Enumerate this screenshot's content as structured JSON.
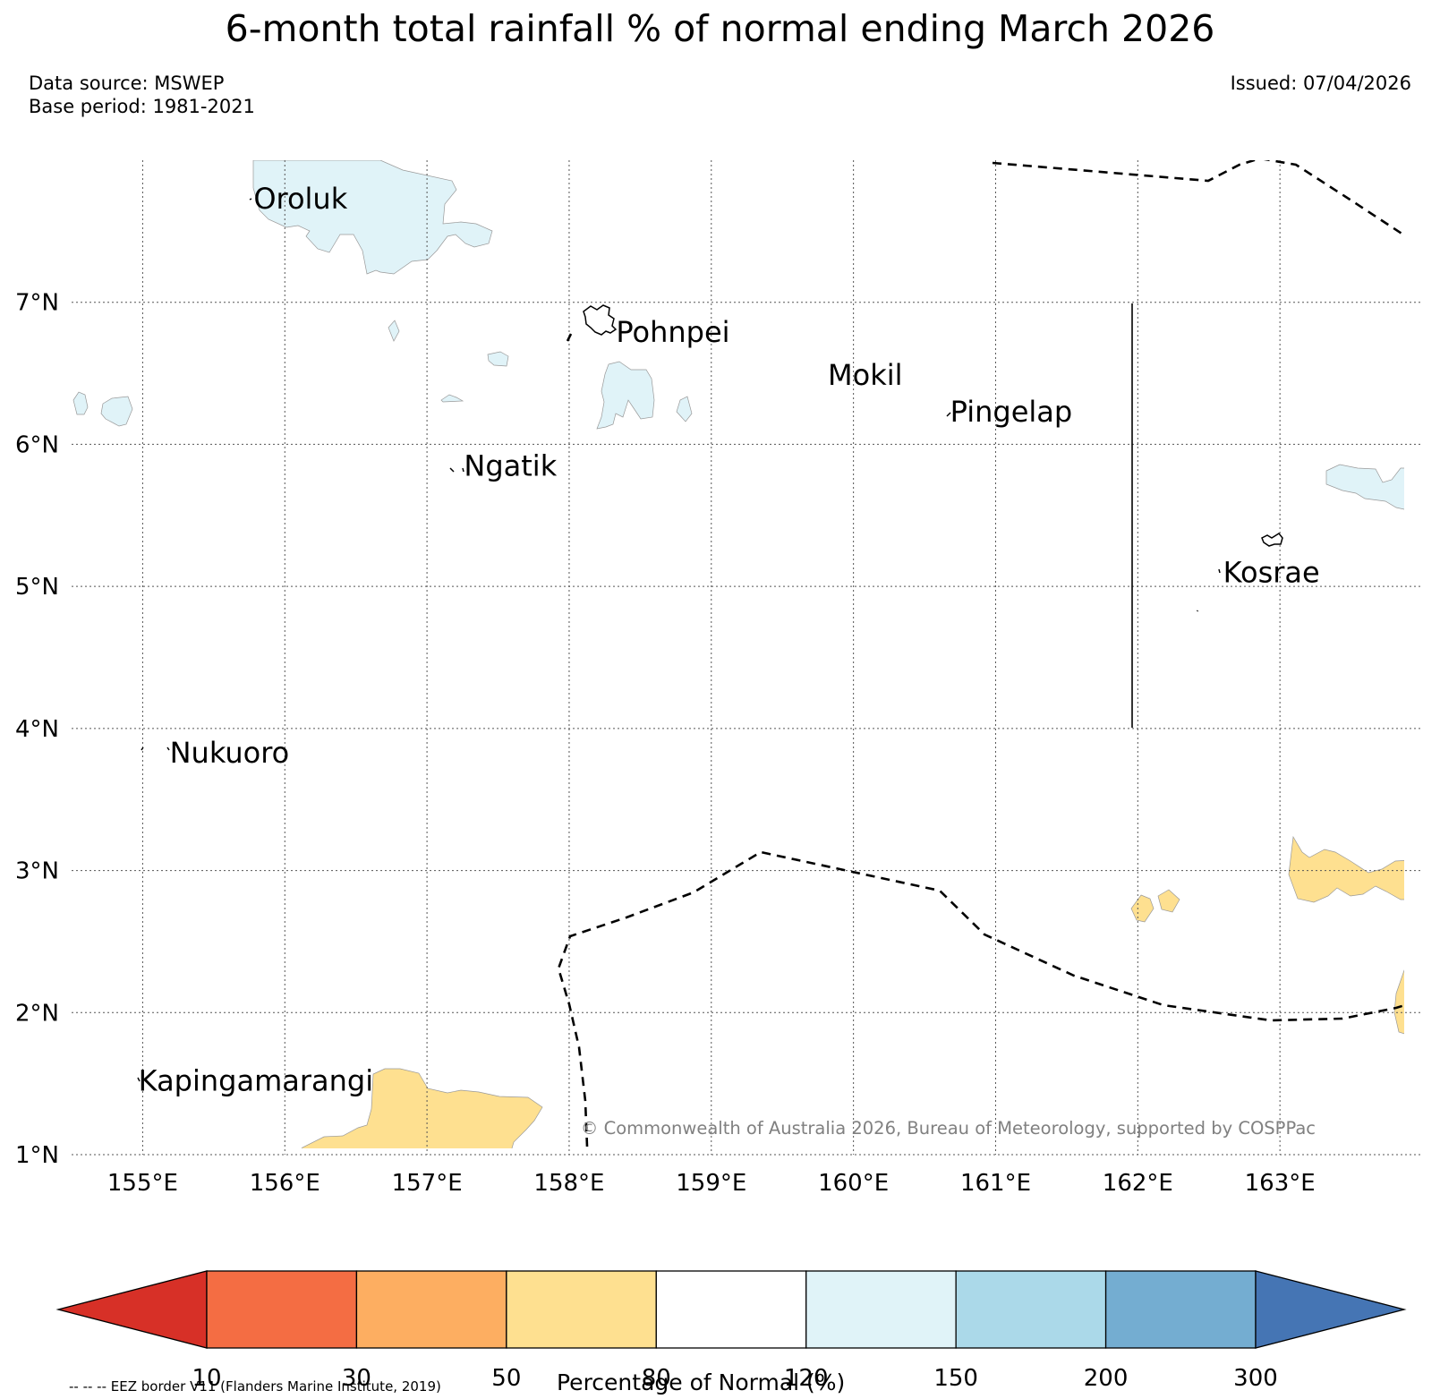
{
  "title": "6-month total rainfall % of normal ending March 2026",
  "data_source": "Data source: MSWEP",
  "base_period": "Base period: 1981-2021",
  "issued": "Issued: 07/04/2026",
  "copyright": "© Commonwealth of Australia 2026, Bureau of Meteorology, supported by COSPPac",
  "axes": {
    "lon_range": [
      154.5,
      164.0
    ],
    "lat_range": [
      1.0,
      8.0
    ],
    "lon_ticks": [
      155,
      156,
      157,
      158,
      159,
      160,
      161,
      162,
      163
    ],
    "lon_labels": [
      "155°E",
      "156°E",
      "157°E",
      "158°E",
      "159°E",
      "160°E",
      "161°E",
      "162°E",
      "163°E"
    ],
    "lat_ticks": [
      1,
      2,
      3,
      4,
      5,
      6,
      7
    ],
    "lat_labels": [
      "1°N",
      "2°N",
      "3°N",
      "4°N",
      "5°N",
      "6°N",
      "7°N"
    ]
  },
  "places": [
    {
      "name": "Oroluk",
      "lon": 155.78,
      "lat": 7.66
    },
    {
      "name": "Pohnpei",
      "lon": 158.33,
      "lat": 6.72
    },
    {
      "name": "Mokil",
      "lon": 159.82,
      "lat": 6.42
    },
    {
      "name": "Pingelap",
      "lon": 160.68,
      "lat": 6.16
    },
    {
      "name": "Ngatik",
      "lon": 157.26,
      "lat": 5.78
    },
    {
      "name": "Kosrae",
      "lon": 162.6,
      "lat": 5.03
    },
    {
      "name": "Nukuoro",
      "lon": 155.19,
      "lat": 3.76
    },
    {
      "name": "Kapingamarangi",
      "lon": 154.97,
      "lat": 1.45
    }
  ],
  "colorbar": {
    "label": "Percentage of Normal (%)",
    "ticks": [
      "10",
      "30",
      "50",
      "80",
      "120",
      "150",
      "200",
      "300"
    ],
    "colors": [
      "#d73027",
      "#f46d43",
      "#fdae61",
      "#fee090",
      "#ffffff",
      "#e0f3f8",
      "#abd9e9",
      "#74add1",
      "#4575b4"
    ]
  },
  "legend_caption": "-- -- -- EEZ border V11 (Flanders Marine Institute, 2019)"
}
